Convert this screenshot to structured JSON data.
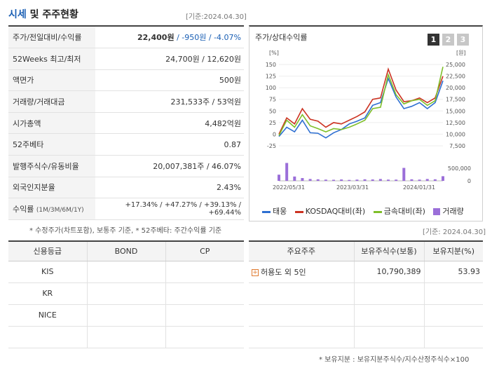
{
  "header": {
    "title_part1": "시세",
    "title_part2": " 및 주주현황",
    "base_date": "[기준:2024.04.30]"
  },
  "stats": [
    {
      "key": "주가/전일대비/수익률",
      "price": "22,400원",
      "change": " / -950원",
      "rate": " / -4.07%"
    },
    {
      "key": "52Weeks 최고/최저",
      "value": "24,700원 / 12,620원"
    },
    {
      "key": "액면가",
      "value": "500원"
    },
    {
      "key": "거래량/거래대금",
      "value": "231,533주 / 53억원"
    },
    {
      "key": "시가총액",
      "value": "4,482억원"
    },
    {
      "key": "52주베타",
      "value": "0.87"
    },
    {
      "key": "발행주식수/유동비율",
      "value": "20,007,381주 / 46.07%"
    },
    {
      "key": "외국인지분율",
      "value": "2.43%"
    },
    {
      "key": "수익률",
      "key_sub": "(1M/3M/6M/1Y)",
      "value": "+17.34% / +47.27% / +39.13% / +69.44%"
    }
  ],
  "stats_note": "* 수정주가(차트포함), 보통주 기준, * 52주베타: 주간수익률 기준",
  "chart_panel": {
    "title": "주가/상대수익률",
    "buttons": [
      "1",
      "2",
      "3"
    ],
    "left_unit": "[%]",
    "right_unit": "[원]",
    "legend": [
      "태웅",
      "KOSDAQ대비(좌)",
      "금속대비(좌)",
      "거래량"
    ]
  },
  "chart_data": {
    "type": "line",
    "x_ticks": [
      "2022/05/31",
      "2023/03/31",
      "2024/01/31"
    ],
    "left_axis": {
      "ticks": [
        "150",
        "125",
        "100",
        "75",
        "50",
        "25",
        "0",
        "-25"
      ],
      "range": [
        -25,
        150
      ]
    },
    "right_axis": {
      "ticks": [
        "25,000",
        "22,500",
        "20,000",
        "17,500",
        "15,000",
        "12,500",
        "10,000",
        "7,500"
      ],
      "range": [
        7500,
        25000
      ]
    },
    "volume_axis": {
      "ticks": [
        "500,000",
        "0"
      ],
      "range": [
        0,
        500000
      ]
    },
    "series": [
      {
        "name": "태웅",
        "color": "#2e6fd1",
        "values": [
          -5,
          15,
          5,
          30,
          3,
          2,
          -8,
          3,
          10,
          22,
          28,
          35,
          62,
          68,
          120,
          80,
          55,
          60,
          68,
          55,
          68,
          115
        ]
      },
      {
        "name": "KOSDAQ대비(좌)",
        "color": "#cc3322",
        "values": [
          0,
          35,
          22,
          55,
          32,
          28,
          15,
          25,
          22,
          30,
          38,
          48,
          75,
          78,
          140,
          95,
          70,
          72,
          78,
          68,
          78,
          125
        ]
      },
      {
        "name": "금속대비(좌)",
        "color": "#7fbf2a",
        "values": [
          -3,
          30,
          15,
          42,
          18,
          12,
          5,
          12,
          10,
          15,
          22,
          30,
          55,
          58,
          128,
          85,
          65,
          72,
          75,
          62,
          72,
          145
        ]
      }
    ],
    "volume": [
      200000,
      580000,
      140000,
      90000,
      60000,
      50000,
      40000,
      35000,
      45000,
      30000,
      40000,
      50000,
      45000,
      60000,
      40000,
      40000,
      420000,
      50000,
      40000,
      60000,
      50000,
      150000
    ]
  },
  "credit": {
    "headers": [
      "신용등급",
      "BOND",
      "CP"
    ],
    "rows": [
      [
        "KIS",
        "",
        ""
      ],
      [
        "KR",
        "",
        ""
      ],
      [
        "NICE",
        "",
        ""
      ],
      [
        "",
        "",
        ""
      ]
    ]
  },
  "holders": {
    "base_date": "[기준: 2024.04.30]",
    "headers": [
      "주요주주",
      "보유주식수(보통)",
      "보유지분(%)"
    ],
    "rows": [
      {
        "name": "허용도 외 5인",
        "shares": "10,790,389",
        "pct": "53.93"
      }
    ],
    "note": "* 보유지분 : 보유지분주식수/지수산정주식수×100"
  }
}
